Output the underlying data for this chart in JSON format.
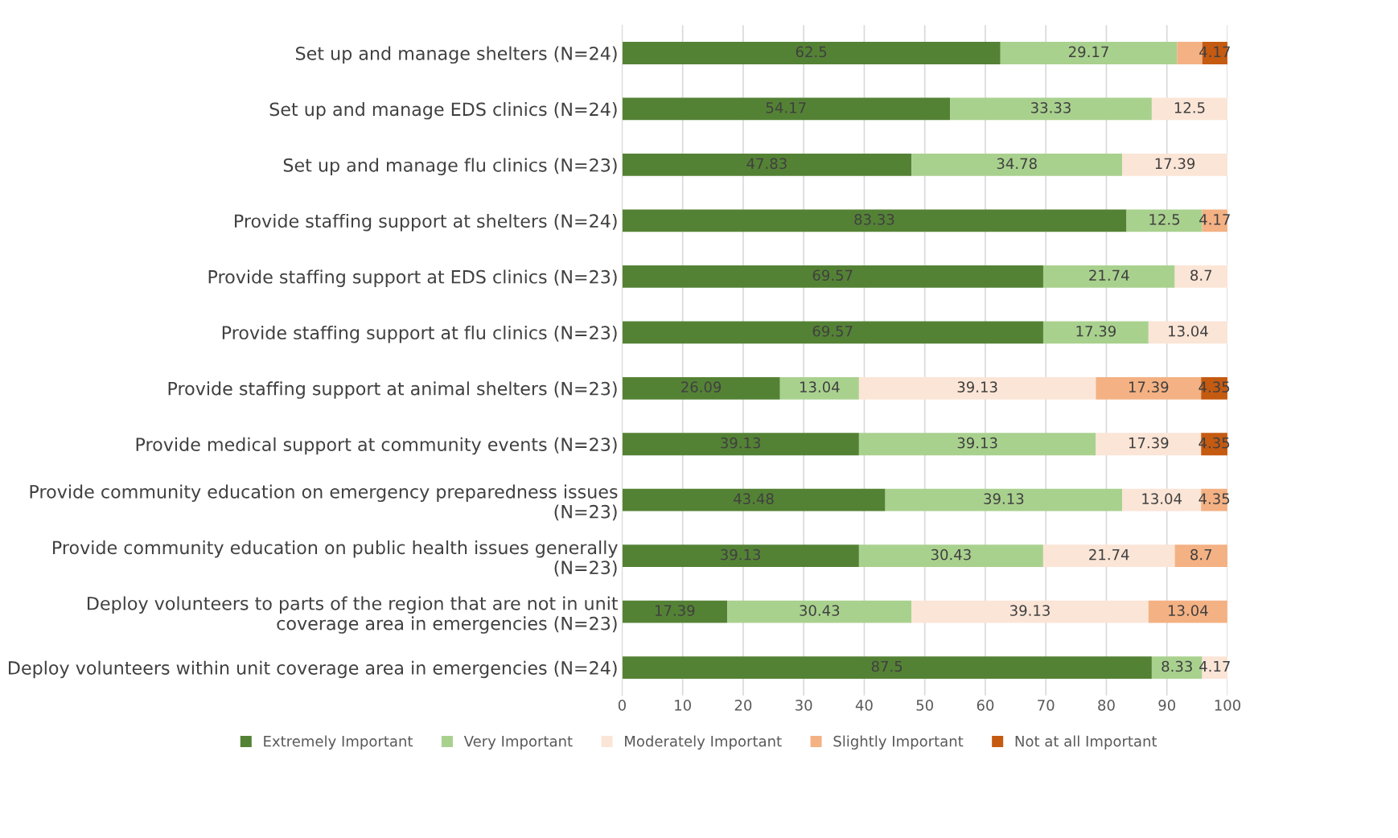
{
  "chart_data": {
    "type": "bar",
    "orientation": "horizontal",
    "stacked": true,
    "categories": [
      "Set up and manage shelters (N=24)",
      "Set up and manage EDS clinics (N=24)",
      "Set up and manage flu clinics (N=23)",
      "Provide staffing support at shelters (N=24)",
      "Provide staffing support at EDS clinics (N=23)",
      "Provide staffing support at flu clinics (N=23)",
      "Provide staffing support at animal shelters (N=23)",
      "Provide medical support at community events (N=23)",
      "Provide community education on emergency preparedness issues\n(N=23)",
      "Provide community education on public health issues generally\n(N=23)",
      "Deploy volunteers to parts of the region that are not in unit\ncoverage area in emergencies (N=23)",
      "Deploy volunteers within unit coverage area in emergencies (N=24)"
    ],
    "series": [
      {
        "name": "Extremely Important",
        "color": "#548235",
        "values": [
          62.5,
          54.17,
          47.83,
          83.33,
          69.57,
          69.57,
          26.09,
          39.13,
          43.48,
          39.13,
          17.39,
          87.5
        ],
        "value_labels": [
          "62.5",
          "54.17",
          "47.83",
          "83.33",
          "69.57",
          "69.57",
          "26.09",
          "39.13",
          "43.48",
          "39.13",
          "17.39",
          "87.5"
        ]
      },
      {
        "name": "Very Important",
        "color": "#a9d18e",
        "values": [
          29.17,
          33.33,
          34.78,
          12.5,
          21.74,
          17.39,
          13.04,
          39.13,
          39.13,
          30.43,
          30.43,
          8.33
        ],
        "value_labels": [
          "29.17",
          "33.33",
          "34.78",
          "12.5",
          "21.74",
          "17.39",
          "13.04",
          "39.13",
          "39.13",
          "30.43",
          "30.43",
          "8.33"
        ]
      },
      {
        "name": "Moderately Important",
        "color": "#fbe5d6",
        "values": [
          null,
          12.5,
          17.39,
          null,
          8.7,
          13.04,
          39.13,
          17.39,
          13.04,
          21.74,
          39.13,
          4.17
        ],
        "value_labels": [
          null,
          "12.5",
          "17.39",
          null,
          "8.7",
          "13.04",
          "39.13",
          "17.39",
          "13.04",
          "21.74",
          "39.13",
          "4.17"
        ]
      },
      {
        "name": "Slightly Important",
        "color": "#f4b183",
        "values": [
          4.17,
          null,
          null,
          4.17,
          null,
          null,
          17.39,
          null,
          4.35,
          8.7,
          13.04,
          null
        ],
        "value_labels": [
          null,
          null,
          null,
          "4.17",
          null,
          null,
          "17.39",
          null,
          "4.35",
          "8.7",
          "13.04",
          null
        ]
      },
      {
        "name": "Not at all Important",
        "color": "#c55a11",
        "values": [
          4.17,
          null,
          null,
          null,
          null,
          null,
          4.35,
          4.35,
          null,
          null,
          null,
          null
        ],
        "value_labels": [
          "4.17",
          null,
          null,
          null,
          null,
          null,
          "4.35",
          "4.35",
          null,
          null,
          null,
          null
        ]
      }
    ],
    "xlim": [
      0,
      100
    ],
    "xticks": [
      0,
      10,
      20,
      30,
      40,
      50,
      60,
      70,
      80,
      90,
      100
    ],
    "grid": "x",
    "legend": "bottom"
  }
}
